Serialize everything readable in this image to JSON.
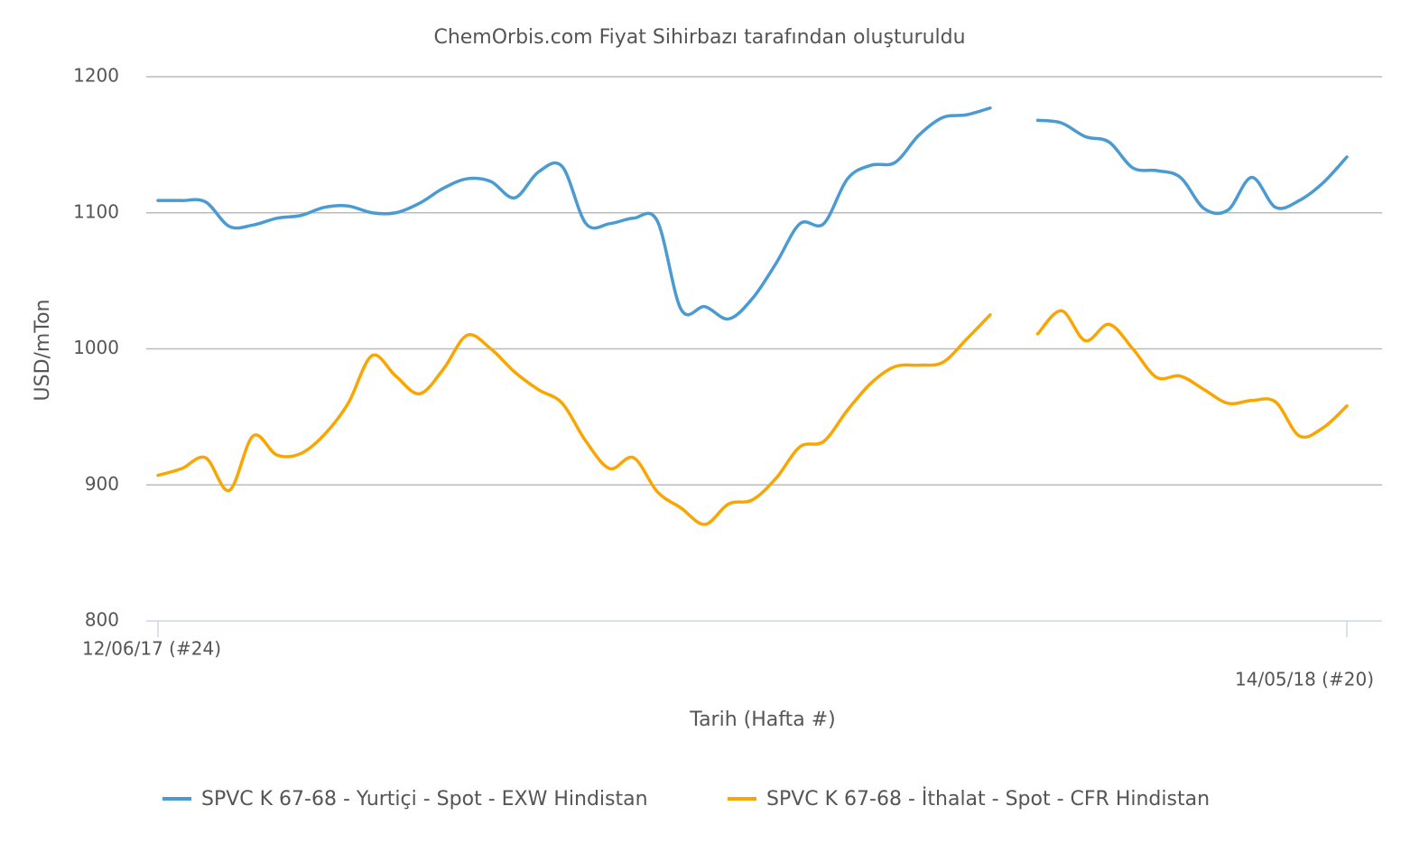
{
  "chart_data": {
    "type": "line",
    "title": "ChemOrbis.com Fiyat Sihirbazı tarafından oluşturuldu",
    "x_label": "Tarih (Hafta #)",
    "y_label": "USD/mTon",
    "categories": [
      "12/06/17 (#24)",
      null,
      null,
      null,
      null,
      null,
      null,
      null,
      null,
      null,
      null,
      null,
      null,
      null,
      null,
      null,
      null,
      null,
      null,
      null,
      null,
      null,
      null,
      null,
      null,
      null,
      null,
      null,
      null,
      null,
      null,
      null,
      null,
      null,
      null,
      null,
      null,
      null,
      null,
      null,
      null,
      null,
      null,
      null,
      null,
      null,
      null,
      null,
      null,
      null,
      "14/05/18 (#20)"
    ],
    "series": [
      {
        "name": "SPVC K 67-68 - Yurtiçi - Spot - EXW Hindistan",
        "color": "#4b9bd3",
        "values": [
          1109,
          1109,
          1108,
          1090,
          1091,
          1096,
          1098,
          1104,
          1105,
          1100,
          1100,
          1107,
          1118,
          1125,
          1123,
          1111,
          1130,
          1134,
          1092,
          1092,
          1096,
          1094,
          1029,
          1031,
          1022,
          1037,
          1063,
          1092,
          1092,
          1125,
          1135,
          1137,
          1157,
          1170,
          1172,
          1177,
          null,
          1168,
          1166,
          1156,
          1152,
          1133,
          1131,
          1126,
          1103,
          1102,
          1126,
          1104,
          1109,
          1122,
          1141
        ]
      },
      {
        "name": "SPVC K 67-68 - İthalat - Spot - CFR Hindistan",
        "color": "#f9a602",
        "values": [
          907,
          912,
          920,
          896,
          936,
          922,
          923,
          937,
          960,
          995,
          980,
          967,
          985,
          1010,
          1000,
          983,
          970,
          960,
          932,
          912,
          920,
          895,
          883,
          871,
          886,
          889,
          905,
          928,
          932,
          955,
          975,
          987,
          988,
          990,
          1007,
          1025,
          null,
          1011,
          1028,
          1006,
          1018,
          1000,
          979,
          980,
          970,
          960,
          962,
          961,
          936,
          942,
          958
        ]
      }
    ],
    "ylim": [
      800,
      1200
    ],
    "yticks": [
      800,
      900,
      1000,
      1100,
      1200
    ],
    "grid": true,
    "legend": "bottom"
  }
}
